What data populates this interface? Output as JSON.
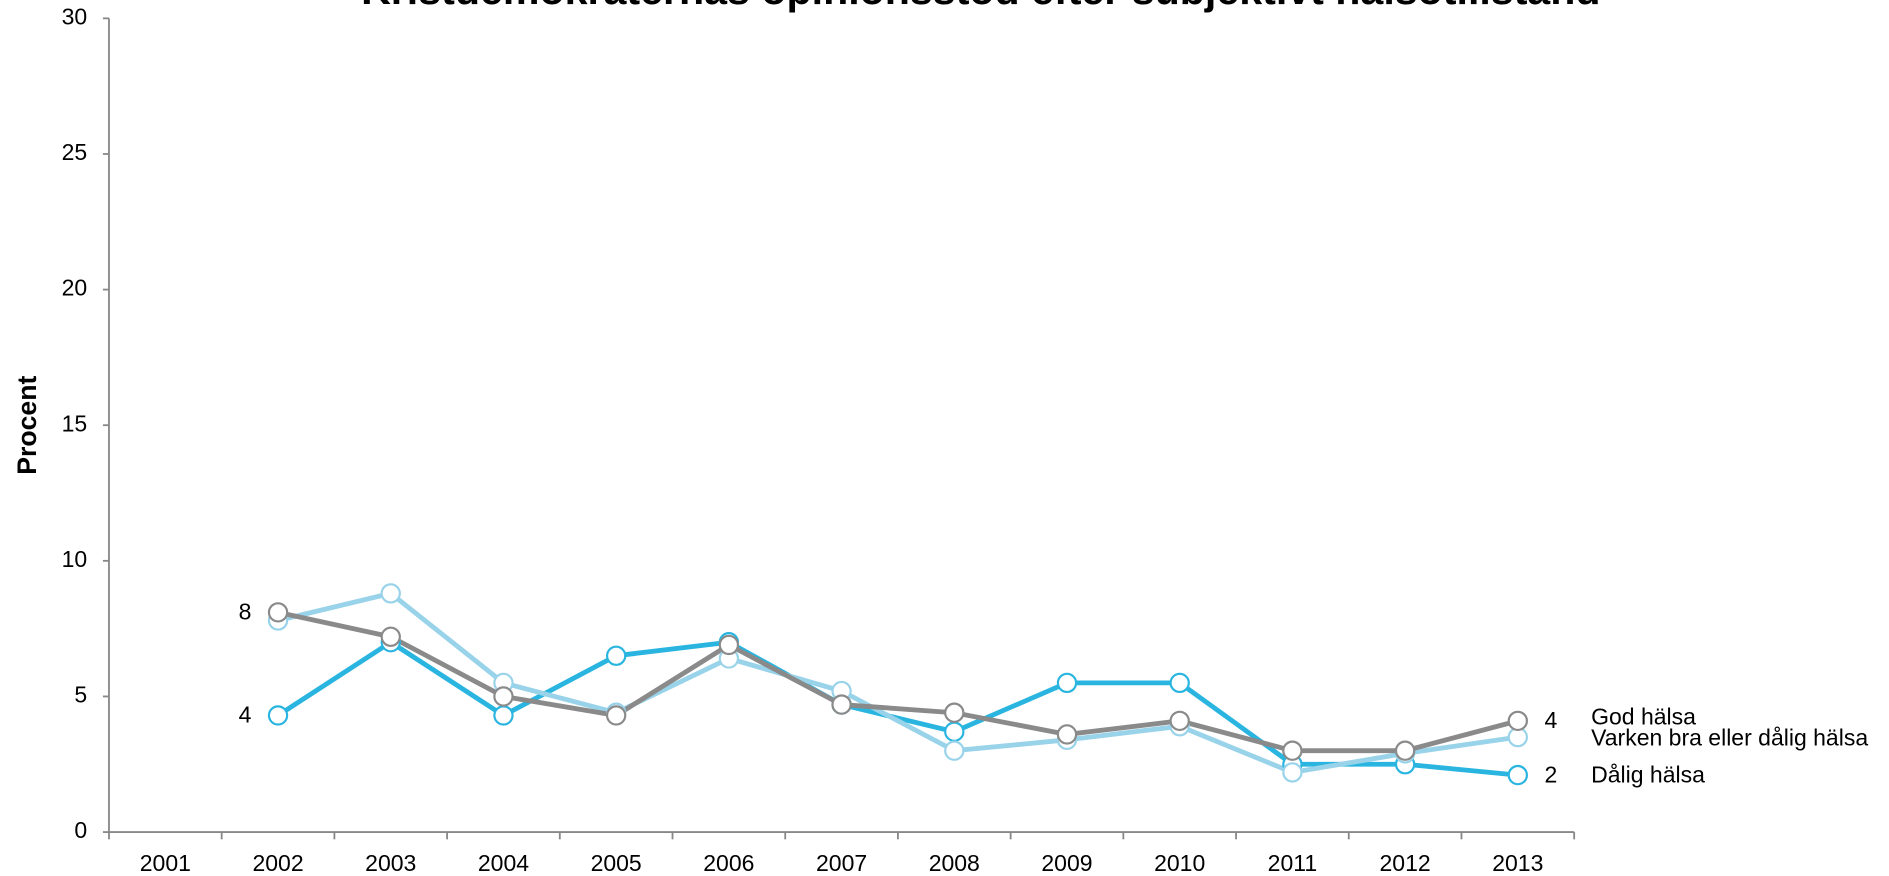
{
  "chart_data": {
    "type": "line",
    "title": "Kristdemokraternas opinionsstöd efter subjektivt hälsotillstånd",
    "y_label": "Procent",
    "categories": [
      "2001",
      "2002",
      "2003",
      "2004",
      "2005",
      "2006",
      "2007",
      "2008",
      "2009",
      "2010",
      "2011",
      "2012",
      "2013"
    ],
    "ylim": [
      0,
      30
    ],
    "yticks": [
      0,
      5,
      10,
      15,
      20,
      25,
      30
    ],
    "series": [
      {
        "name": "Dålig hälsa",
        "color": "#29b5e0",
        "values": [
          null,
          4.3,
          7.0,
          4.3,
          6.5,
          7.0,
          4.7,
          3.7,
          5.5,
          5.5,
          2.5,
          2.5,
          2.1
        ],
        "value_labels": [
          null,
          "4",
          null,
          null,
          null,
          null,
          null,
          null,
          null,
          null,
          null,
          null,
          "2"
        ]
      },
      {
        "name": "Varken bra eller dålig hälsa",
        "color": "#98d3ea",
        "values": [
          null,
          7.8,
          8.8,
          5.5,
          4.4,
          6.4,
          5.2,
          3.0,
          3.4,
          3.9,
          2.2,
          2.9,
          3.5
        ]
      },
      {
        "name": "God hälsa",
        "color": "#8a8a8a",
        "values": [
          null,
          8.1,
          7.2,
          5.0,
          4.3,
          6.9,
          4.7,
          4.4,
          3.6,
          4.1,
          3.0,
          3.0,
          4.1
        ],
        "value_labels": [
          null,
          "8",
          null,
          null,
          null,
          null,
          null,
          null,
          null,
          null,
          null,
          null,
          "4"
        ]
      }
    ]
  }
}
